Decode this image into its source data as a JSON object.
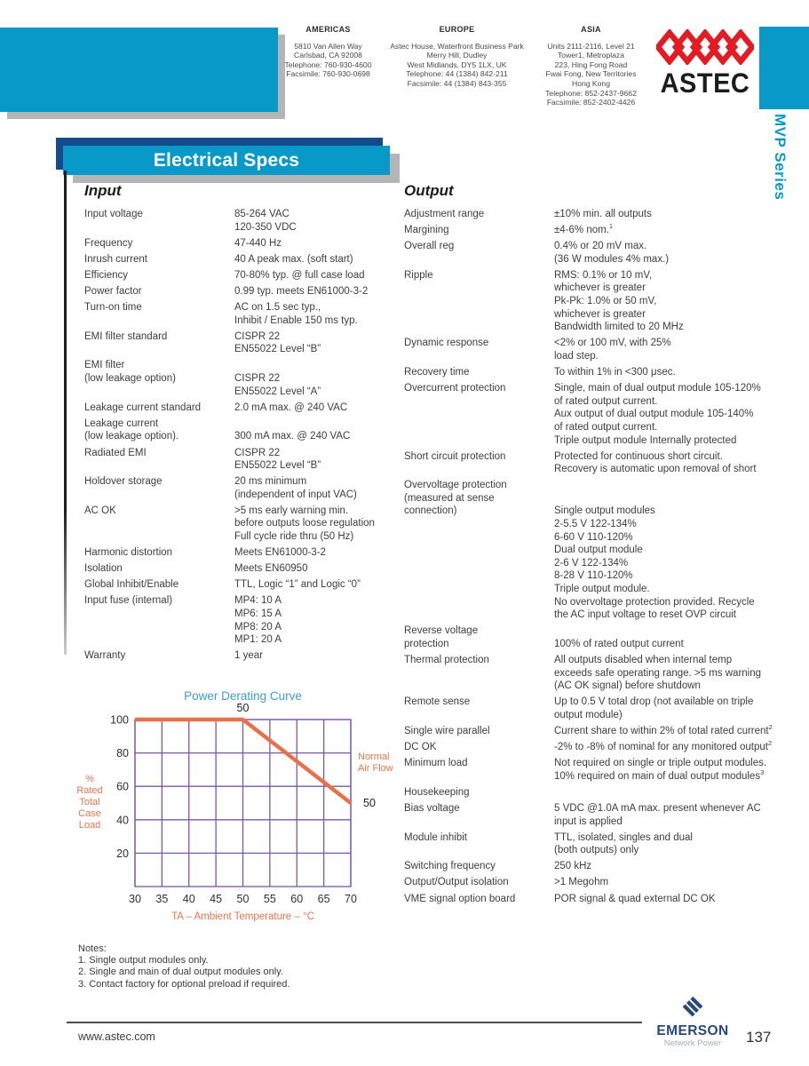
{
  "page": {
    "number": "137",
    "website": "www.astec.com"
  },
  "brand": {
    "astec": "ASTEC",
    "series": "MVP Series",
    "emerson": "EMERSON",
    "emerson_sub": "Network Power"
  },
  "header": {
    "offices": [
      {
        "region": "AMERICAS",
        "lines": [
          "5810 Van Allen Way",
          "Carlsbad, CA 92008",
          "Telephone: 760-930-4600",
          "Facsimile: 760-930-0698"
        ]
      },
      {
        "region": "EUROPE",
        "lines": [
          "Astec House, Waterfront Business Park",
          "Merry Hill, Dudley",
          "West Midlands, DY5 1LX, UK",
          "Telephone: 44 (1384) 842-211",
          "Facsimile: 44 (1384) 843-355"
        ]
      },
      {
        "region": "ASIA",
        "lines": [
          "Units 2111-2116, Level 21",
          "Tower1, Metroplaza",
          "223, Hing Fong Road",
          "Fwai Fong, New Territories",
          "Hong Kong",
          "Telephone: 852-2437-9662",
          "Facsimile: 852-2402-4426"
        ]
      }
    ]
  },
  "banner": {
    "title": "Electrical Specs"
  },
  "specs": {
    "input": {
      "heading": "Input",
      "rows": [
        {
          "label": [
            "Input voltage"
          ],
          "value": [
            "85-264 VAC",
            "120-350 VDC"
          ]
        },
        {
          "label": [
            "Frequency"
          ],
          "value": [
            "47-440 Hz"
          ]
        },
        {
          "label": [
            "Inrush current"
          ],
          "value": [
            "40 A peak max. (soft start)"
          ]
        },
        {
          "label": [
            "Efficiency"
          ],
          "value": [
            "70-80% typ. @ full case load"
          ]
        },
        {
          "label": [
            "Power factor"
          ],
          "value": [
            "0.99 typ. meets EN61000-3-2"
          ]
        },
        {
          "label": [
            "Turn-on time"
          ],
          "value": [
            "AC on 1.5 sec typ.,",
            "Inhibit / Enable 150 ms typ."
          ]
        },
        {
          "label": [
            "EMI filter standard"
          ],
          "value": [
            "CISPR 22",
            "EN55022 Level “B”"
          ]
        },
        {
          "label": [
            "EMI filter",
            "(low  leakage option)"
          ],
          "value": [
            "",
            "CISPR 22",
            "EN55022 Level “A”"
          ]
        },
        {
          "label": [
            "Leakage current standard"
          ],
          "value": [
            "2.0 mA max. @ 240 VAC"
          ]
        },
        {
          "label": [
            "Leakage current",
            "(low leakage option)."
          ],
          "value": [
            "",
            "300 mA max. @ 240 VAC"
          ]
        },
        {
          "label": [
            "Radiated EMI"
          ],
          "value": [
            "CISPR 22",
            "EN55022 Level “B”"
          ]
        },
        {
          "label": [
            "Holdover storage"
          ],
          "value": [
            "20 ms minimum",
            "(independent of input VAC)"
          ]
        },
        {
          "label": [
            "AC OK"
          ],
          "value": [
            ">5 ms early warning min.",
            "before outputs loose regulation",
            "Full cycle ride thru (50 Hz)"
          ]
        },
        {
          "label": [
            "Harmonic distortion"
          ],
          "value": [
            "Meets EN61000-3-2"
          ]
        },
        {
          "label": [
            "Isolation"
          ],
          "value": [
            "Meets EN60950"
          ]
        },
        {
          "label": [
            "Global Inhibit/Enable"
          ],
          "value": [
            "TTL, Logic “1” and Logic “0”"
          ]
        },
        {
          "label": [
            "Input fuse (internal)"
          ],
          "value": [
            "MP4: 10 A",
            "MP6: 15 A",
            "MP8: 20 A",
            "MP1: 20 A"
          ]
        },
        {
          "label": [
            "Warranty"
          ],
          "value": [
            "1 year"
          ]
        }
      ]
    },
    "output": {
      "heading": "Output",
      "rows": [
        {
          "label": [
            "Adjustment range"
          ],
          "value": [
            "±10% min. all outputs"
          ]
        },
        {
          "label": [
            "Margining"
          ],
          "value": [
            "±4-6% nom.^1"
          ]
        },
        {
          "label": [
            "Overall reg"
          ],
          "value": [
            "0.4% or 20 mV max.",
            "(36 W modules 4% max.)"
          ]
        },
        {
          "label": [
            "Ripple"
          ],
          "value": [
            "RMS: 0.1% or 10 mV,",
            "whichever is greater",
            "Pk-Pk: 1.0% or 50 mV,",
            "whichever is greater",
            "Bandwidth limited to 20 MHz"
          ]
        },
        {
          "label": [
            "Dynamic response"
          ],
          "value": [
            "<2% or 100 mV, with 25%",
            "load step."
          ]
        },
        {
          "label": [
            "Recovery time"
          ],
          "value": [
            "To within 1% in <300 μsec."
          ]
        },
        {
          "label": [
            "Overcurrent protection"
          ],
          "value": [
            "Single, main of dual output module 105-120%",
            "of rated output current.",
            "Aux output of dual output module 105-140%",
            "of rated output current.",
            "Triple output module Internally protected"
          ]
        },
        {
          "label": [
            "Short circuit protection"
          ],
          "value": [
            "Protected for continuous short circuit.",
            "Recovery is automatic upon removal of short"
          ]
        },
        {
          "label": [
            "Overvoltage protection",
            "(measured at sense",
            "connection)"
          ],
          "value": [
            "",
            "",
            "Single output modules",
            "2-5.5 V  122-134%",
            "6-60 V  110-120%",
            "Dual output module",
            "2-6 V  122-134%",
            "8-28 V  110-120%",
            "Triple output module.",
            "No overvoltage protection provided. Recycle",
            "the AC input voltage to reset OVP circuit"
          ]
        },
        {
          "label": [
            "Reverse voltage",
            "protection"
          ],
          "value": [
            "",
            "100% of rated output current"
          ]
        },
        {
          "label": [
            "Thermal protection"
          ],
          "value": [
            "All outputs disabled when internal temp",
            "exceeds safe operating range. >5 ms warning",
            "(AC OK signal) before shutdown"
          ]
        },
        {
          "label": [
            "Remote sense"
          ],
          "value": [
            "Up to 0.5 V total drop (not available on triple",
            "output module)"
          ]
        },
        {
          "label": [
            "Single wire parallel"
          ],
          "value": [
            "Current share to within 2% of total rated current^2"
          ]
        },
        {
          "label": [
            "DC OK"
          ],
          "value": [
            "-2% to -8% of nominal for any monitored output^2"
          ]
        },
        {
          "label": [
            "Minimum load"
          ],
          "value": [
            "Not required on single or triple output modules.",
            "10% required on main of dual output modules^3"
          ]
        },
        {
          "label": [
            "Housekeeping"
          ],
          "value": []
        },
        {
          "label": [
            "Bias voltage"
          ],
          "value": [
            "5 VDC @1.0A mA max. present whenever AC",
            "input is applied"
          ]
        },
        {
          "label": [
            "Module inhibit"
          ],
          "value": [
            "TTL, isolated, singles and dual",
            "(both outputs) only"
          ]
        },
        {
          "label": [
            "Switching frequency"
          ],
          "value": [
            "250 kHz"
          ]
        },
        {
          "label": [
            "Output/Output isolation"
          ],
          "value": [
            ">1 Megohm"
          ]
        },
        {
          "label": [
            "VME signal option board"
          ],
          "value": [
            "POR signal & quad external DC OK"
          ]
        }
      ]
    }
  },
  "chart_data": {
    "type": "line",
    "title": "Power Derating Curve",
    "xlabel": "TA – Ambient Temperature – °C",
    "ylabel": "% Rated Total Case Load",
    "ylabel_lines": [
      "%",
      "Rated",
      "Total",
      "Case",
      "Load"
    ],
    "xlim": [
      30,
      70
    ],
    "ylim": [
      0,
      100
    ],
    "xticks": [
      30,
      35,
      40,
      45,
      50,
      55,
      60,
      65,
      70
    ],
    "yticks": [
      20,
      40,
      60,
      80,
      100
    ],
    "grid": true,
    "legend_position": "right-margin",
    "series": [
      {
        "name": "Normal Air Flow",
        "name_lines": [
          "Normal",
          "Air Flow"
        ],
        "points": [
          [
            30,
            100
          ],
          [
            50,
            100
          ],
          [
            70,
            50
          ]
        ]
      }
    ],
    "point_labels": [
      {
        "text": "50",
        "at": [
          50,
          100
        ],
        "position": "above"
      },
      {
        "text": "50",
        "at": [
          70,
          50
        ],
        "position": "right"
      }
    ],
    "colors": {
      "curve": "#e7714a",
      "grid": "#7a58a6",
      "title": "#3f9dcc",
      "axis_label": "#e8744b",
      "tick_text": "#2e2e2e"
    }
  },
  "notes": {
    "heading": "Notes:",
    "items": [
      "1. Single output modules only.",
      "2. Single and main of dual output modules only.",
      "3. Contact factory for optional preload if required."
    ]
  }
}
